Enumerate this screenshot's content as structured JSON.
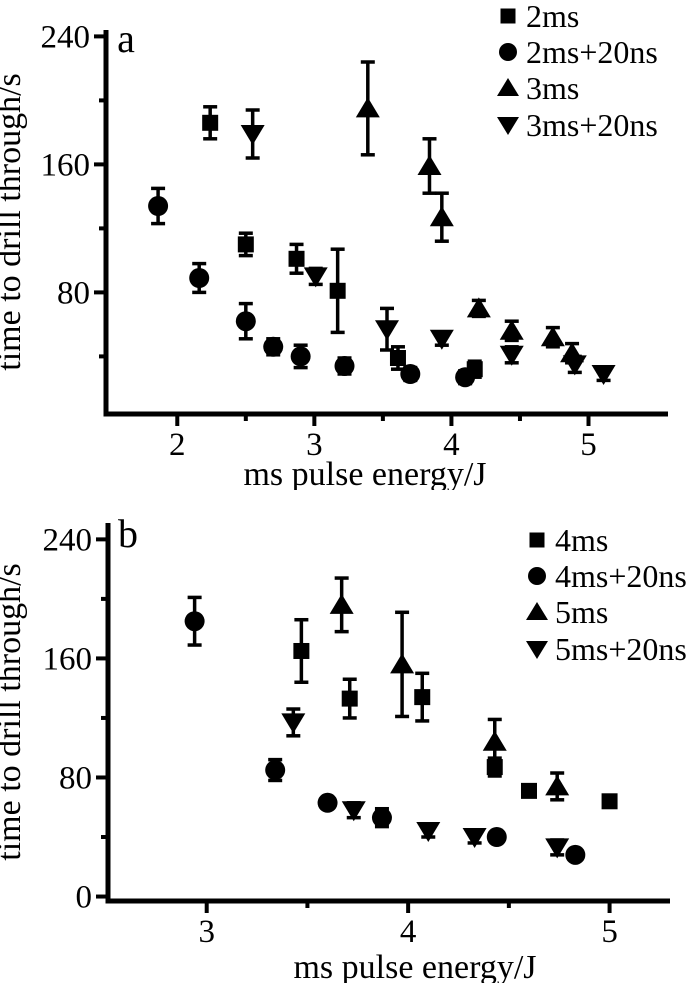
{
  "page": {
    "background": "#ffffff",
    "foreground": "#000000",
    "figure_description": "Two stacked black-and-white scatter plots with error bars"
  },
  "chart_data": [
    {
      "type": "scatter",
      "panel_label": "a",
      "xlabel": "ms pulse energy/J",
      "ylabel": "time to drill through/s",
      "xlim": [
        1.48,
        5.58
      ],
      "ylim": [
        4,
        244
      ],
      "x_ticks": [
        2,
        3,
        4,
        5
      ],
      "x_minor_ticks": [
        2.5,
        3.5,
        4.5
      ],
      "y_ticks": [
        80,
        160,
        240
      ],
      "y_minor_ticks": [
        40,
        120,
        200
      ],
      "grid": false,
      "legend_position": "top-right",
      "error_bars": true,
      "series": [
        {
          "name": "2ms",
          "marker": "square",
          "color": "#000000",
          "points": [
            [
              2.24,
              186,
              10
            ],
            [
              2.5,
              110,
              7
            ],
            [
              2.87,
              101,
              9
            ],
            [
              3.17,
              81,
              26
            ],
            [
              3.61,
              39,
              7
            ],
            [
              4.17,
              32,
              5
            ]
          ]
        },
        {
          "name": "2ms+20ns",
          "marker": "circle",
          "color": "#000000",
          "points": [
            [
              1.86,
              134,
              11
            ],
            [
              2.16,
              89,
              9
            ],
            [
              2.5,
              62,
              11
            ],
            [
              2.7,
              46,
              5
            ],
            [
              2.9,
              40,
              7
            ],
            [
              3.22,
              34,
              5
            ],
            [
              3.7,
              29,
              4
            ],
            [
              4.1,
              27,
              4
            ]
          ]
        },
        {
          "name": "3ms",
          "marker": "triangle-up",
          "color": "#000000",
          "points": [
            [
              3.39,
              195,
              29
            ],
            [
              3.84,
              159,
              17
            ],
            [
              3.93,
              127,
              15
            ],
            [
              4.2,
              70,
              5
            ],
            [
              4.44,
              56,
              6
            ],
            [
              4.74,
              52,
              6
            ],
            [
              4.88,
              42,
              6
            ]
          ]
        },
        {
          "name": "3ms+20ns",
          "marker": "triangle-down",
          "color": "#000000",
          "points": [
            [
              2.55,
              179,
              15
            ],
            [
              3.01,
              90,
              5
            ],
            [
              3.53,
              57,
              13
            ],
            [
              3.93,
              51,
              4
            ],
            [
              4.44,
              41,
              5
            ],
            [
              4.9,
              35,
              5
            ],
            [
              5.11,
              29,
              4
            ]
          ]
        }
      ]
    },
    {
      "type": "scatter",
      "panel_label": "b",
      "xlabel": "ms pulse energy/J",
      "ylabel": "time to drill through/s",
      "xlim": [
        2.51,
        5.3
      ],
      "ylim": [
        -3,
        251
      ],
      "x_ticks": [
        3,
        4,
        5
      ],
      "x_minor_ticks": [
        3.5,
        4.5
      ],
      "y_ticks": [
        0,
        80,
        160,
        240
      ],
      "y_minor_ticks": [
        40,
        120,
        200
      ],
      "grid": false,
      "legend_position": "top-right",
      "error_bars": true,
      "series": [
        {
          "name": "4ms",
          "marker": "square",
          "color": "#000000",
          "points": [
            [
              3.47,
              165,
              21
            ],
            [
              3.71,
              133,
              13
            ],
            [
              4.07,
              134,
              16
            ],
            [
              4.43,
              87,
              6
            ],
            [
              4.6,
              71,
              3
            ],
            [
              5.0,
              64,
              3
            ]
          ]
        },
        {
          "name": "4ms+20ns",
          "marker": "circle",
          "color": "#000000",
          "points": [
            [
              2.94,
              185,
              16
            ],
            [
              3.34,
              85,
              7
            ],
            [
              3.6,
              63,
              3
            ],
            [
              3.87,
              53,
              6
            ],
            [
              4.44,
              40,
              3
            ],
            [
              4.83,
              28,
              3
            ]
          ]
        },
        {
          "name": "5ms",
          "marker": "triangle-up",
          "color": "#000000",
          "points": [
            [
              3.67,
              196,
              18
            ],
            [
              3.97,
              156,
              35
            ],
            [
              4.43,
              104,
              15
            ],
            [
              4.74,
              74,
              9
            ]
          ]
        },
        {
          "name": "5ms+20ns",
          "marker": "triangle-down",
          "color": "#000000",
          "points": [
            [
              3.43,
              117,
              9
            ],
            [
              3.73,
              58,
              5
            ],
            [
              4.1,
              44,
              4
            ],
            [
              4.33,
              40,
              4
            ],
            [
              4.74,
              33,
              5
            ]
          ]
        }
      ]
    }
  ]
}
